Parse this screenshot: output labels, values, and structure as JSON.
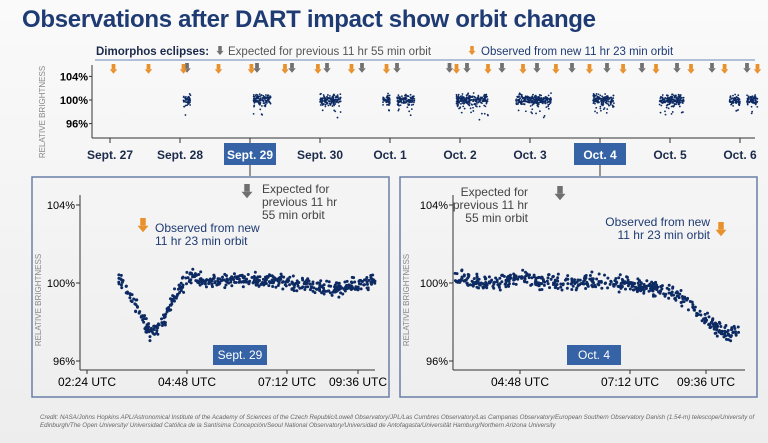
{
  "title": "Observations after DART impact show orbit change",
  "legend": {
    "label": "Dimorphos eclipses:",
    "expected": "Expected for previous 11 hr 55 min orbit",
    "observed": "Observed from new 11 hr 23 min orbit"
  },
  "colors": {
    "points": "#0d2a63",
    "expected_arrow": "#707070",
    "observed_arrow": "#e8912c",
    "highlight": "#3563a6",
    "title": "#1f3b73"
  },
  "credit": "Credit: NASA/Johns Hopkins APL/Astronomical Institute of the Academy of Sciences of the Czech Republic/Lowell Observatory/JPL/Las Cumbres Observatory/Las Campanas Observatory/European Southern Observatory Danish (1.54-m) telescope/University of Edinburgh/The Open University/ Universidad Católica de la Santísima Concepción/Seoul National Observatory/Universidad de Antofagasta/Universität Hamburg/Northern Arizona University",
  "chart_data": [
    {
      "type": "scatter",
      "ylabel": "RELATIVE BRIGHTNESS",
      "yticks": [
        "104%",
        "100%",
        "96%"
      ],
      "ylim": [
        94,
        106
      ],
      "xticks": [
        "Sept. 27",
        "Sept. 28",
        "Sept. 29",
        "Sept. 30",
        "Oct. 1",
        "Oct. 2",
        "Oct. 3",
        "Oct. 4",
        "Oct. 5",
        "Oct. 6"
      ],
      "highlighted": [
        "Sept. 29",
        "Oct. 4"
      ],
      "observation_windows_days": [
        [
          1.05,
          1.15
        ],
        [
          2.05,
          2.3
        ],
        [
          3.0,
          3.3
        ],
        [
          3.9,
          4.0
        ],
        [
          4.1,
          4.35
        ],
        [
          4.95,
          5.4
        ],
        [
          5.8,
          6.3
        ],
        [
          6.9,
          7.2
        ],
        [
          7.85,
          8.2
        ],
        [
          8.85,
          9.0
        ],
        [
          9.1,
          9.25
        ]
      ],
      "expected_arrows_days": [
        1.1,
        2.1,
        2.6,
        3.1,
        3.6,
        4.1,
        4.85,
        5.1,
        5.6,
        6.1,
        6.6,
        7.1,
        7.6,
        8.1,
        8.6,
        9.1
      ],
      "observed_arrows_days": [
        0.05,
        0.55,
        1.05,
        1.55,
        2.02,
        2.5,
        2.97,
        3.45,
        3.95,
        4.95,
        5.4,
        5.9,
        6.37,
        6.85,
        7.33,
        7.8,
        8.3,
        8.78,
        9.25
      ]
    },
    {
      "type": "scatter",
      "label": "Sept. 29",
      "ylabel": "RELATIVE BRIGHTNESS",
      "yticks": [
        "104%",
        "100%",
        "96%"
      ],
      "ylim": [
        96,
        104
      ],
      "xticks": [
        "02:24 UTC",
        "04:48 UTC",
        "07:12 UTC",
        "09:36 UTC"
      ],
      "annotation_observed": "Observed from new 11 hr 23 min orbit",
      "annotation_expected": "Expected for previous 11 hr 55 min orbit",
      "trend": {
        "time_utc_h": [
          3.0,
          3.4,
          3.8,
          4.1,
          4.4,
          4.8,
          5.3,
          6.0,
          7.0,
          8.0,
          8.5,
          9.0,
          9.6
        ],
        "brightness_pct": [
          100.3,
          99.0,
          97.5,
          97.8,
          99.2,
          100.4,
          100.0,
          100.2,
          100.1,
          99.9,
          99.6,
          99.9,
          100.1
        ]
      }
    },
    {
      "type": "scatter",
      "label": "Oct. 4",
      "ylabel": "RELATIVE BRIGHTNESS",
      "yticks": [
        "104%",
        "100%",
        "96%"
      ],
      "ylim": [
        96,
        104
      ],
      "xticks": [
        "04:48 UTC",
        "07:12 UTC",
        "09:36 UTC"
      ],
      "annotation_observed": "Observed from new 11 hr 23 min orbit",
      "annotation_expected": "Expected for previous 11 hr 55 min orbit",
      "trend": {
        "time_utc_h": [
          2.9,
          3.5,
          4.5,
          5.5,
          6.5,
          7.5,
          8.0,
          8.5,
          9.0,
          9.4,
          9.6
        ],
        "brightness_pct": [
          100.3,
          100.0,
          100.2,
          100.0,
          100.1,
          99.8,
          99.6,
          98.8,
          97.8,
          97.3,
          97.6
        ]
      }
    }
  ]
}
